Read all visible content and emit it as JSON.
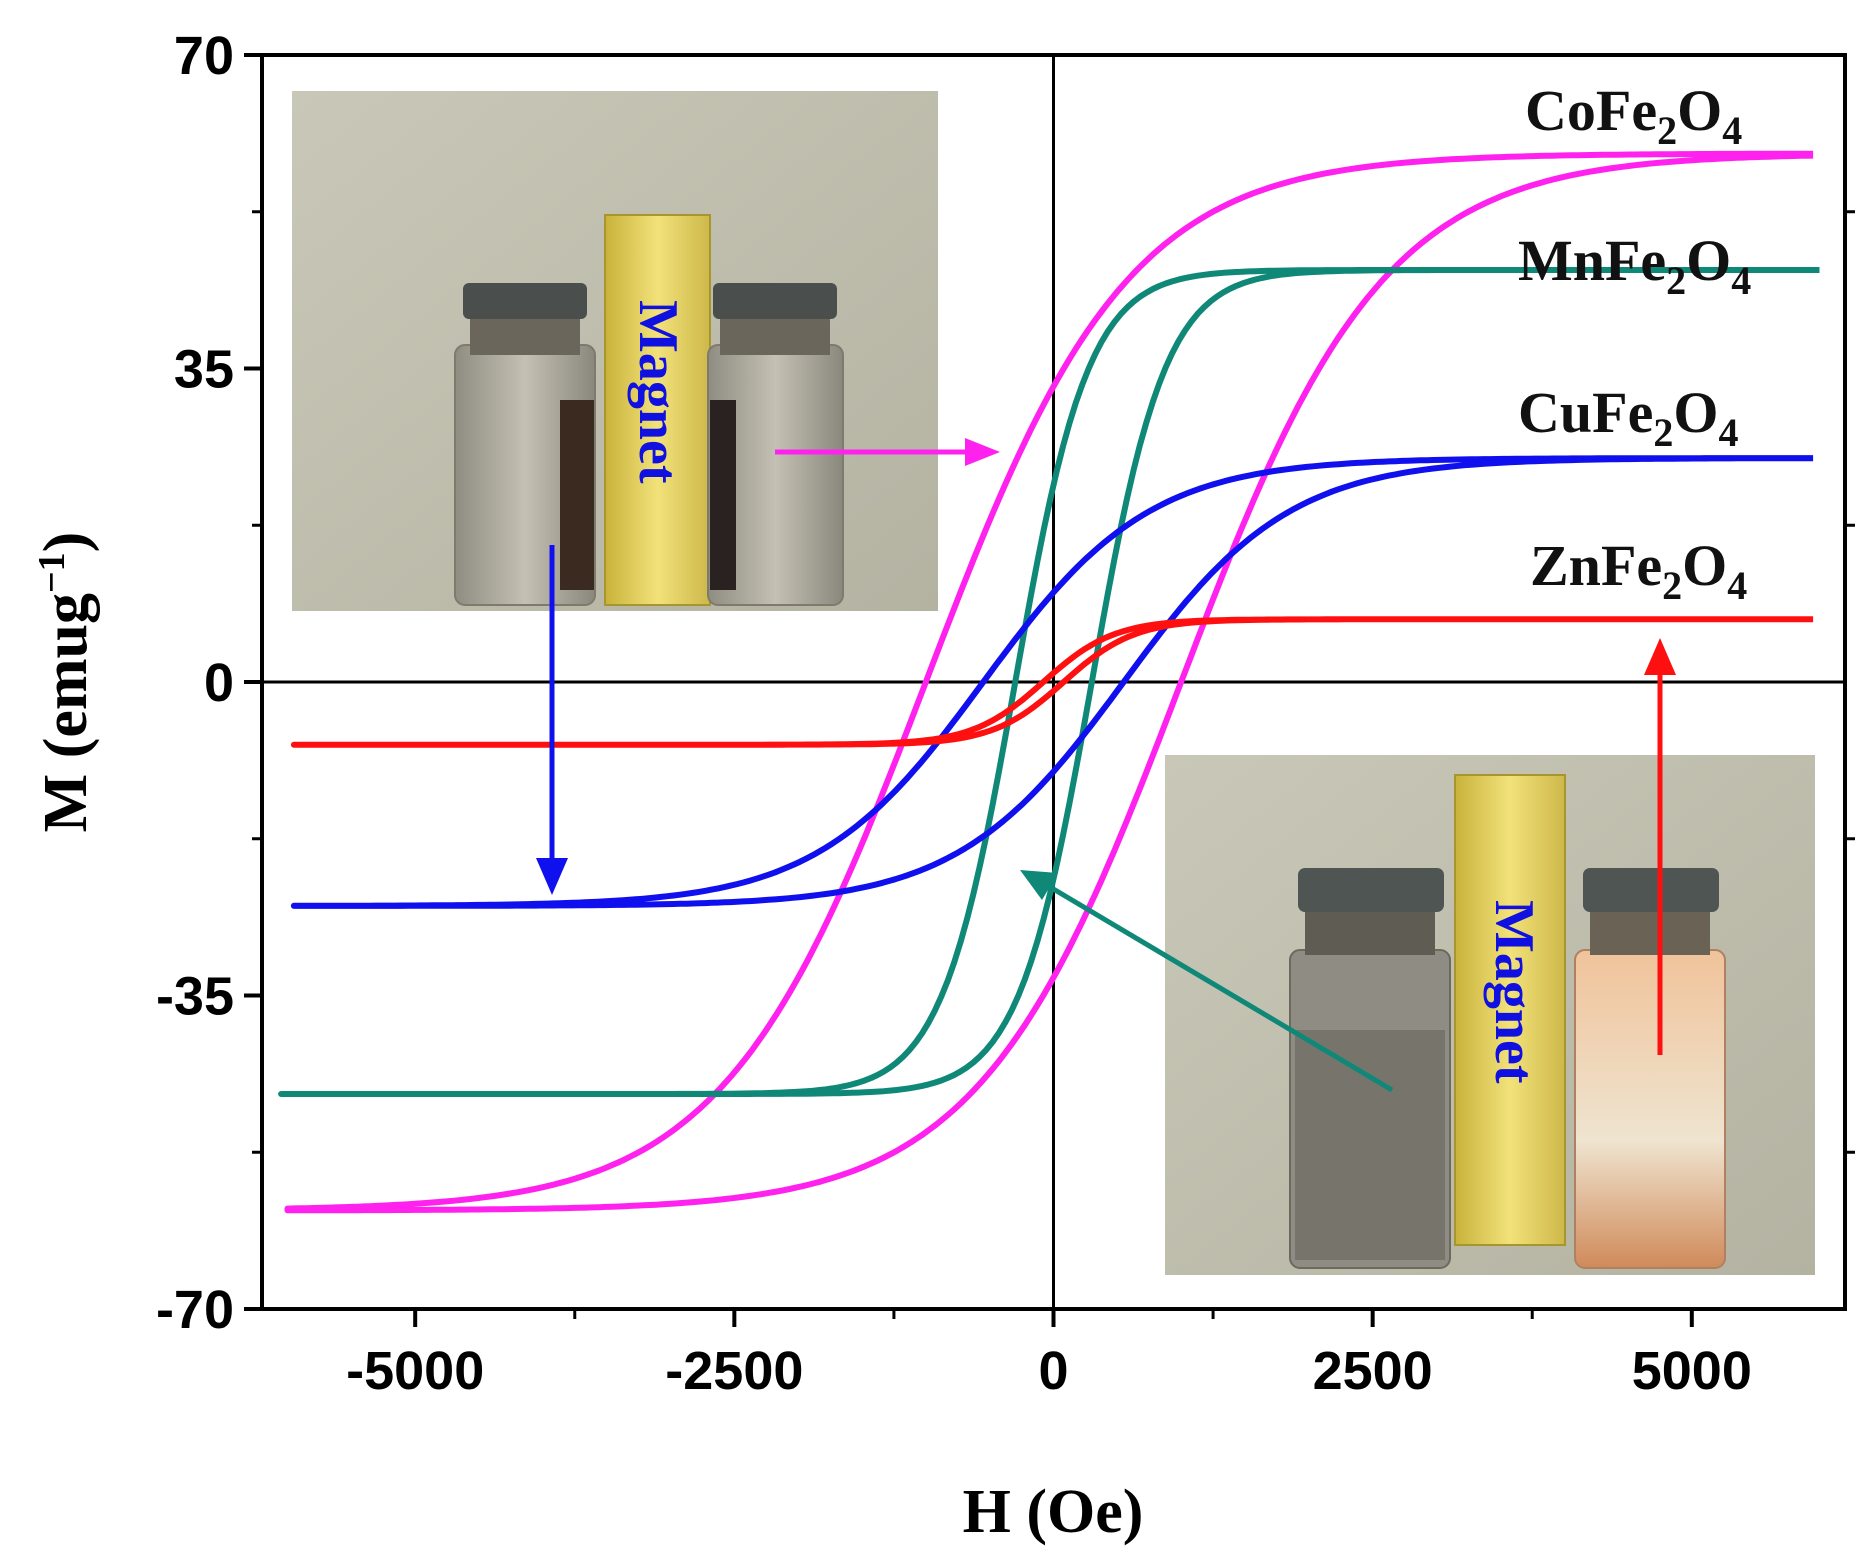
{
  "chart_data": {
    "type": "line",
    "xlabel": "H (Oe)",
    "ylabel_main": "M (emug",
    "ylabel_sup": "−1",
    "ylabel_close": ")",
    "xlim": [
      -6200,
      6200
    ],
    "ylim": [
      -70,
      70
    ],
    "xticks": [
      -5000,
      -2500,
      0,
      2500,
      5000
    ],
    "yticks": [
      70,
      35,
      0,
      -35,
      -70
    ],
    "xtick_labels": [
      "-5000",
      "-2500",
      "0",
      "2500",
      "5000"
    ],
    "ytick_labels": [
      "70",
      "35",
      "0",
      "-35",
      "-70"
    ],
    "grid": false,
    "zero_lines": true,
    "series": [
      {
        "name": "CoFe2O4",
        "label_main": "CoFe",
        "label_sub1": "2",
        "label_mid": "O",
        "label_sub2": "4",
        "color": "#ff22ee",
        "Ms": 59,
        "Hc": 1000,
        "Mr": 33,
        "x_range": [
          -6000,
          5950
        ]
      },
      {
        "name": "MnFe2O4",
        "label_main": "MnFe",
        "label_sub1": "2",
        "label_mid": "O",
        "label_sub2": "4",
        "color": "#108878",
        "Ms": 46,
        "Hc": 300,
        "Mr": 22,
        "x_range": [
          -6050,
          6000
        ]
      },
      {
        "name": "CuFe2O4",
        "label_main": "CuFe",
        "label_sub1": "2",
        "label_mid": "O",
        "label_sub2": "4",
        "color": "#1010ee",
        "Ms": 25,
        "Hc": 550,
        "Mr": 10,
        "x_range": [
          -5950,
          5950
        ]
      },
      {
        "name": "ZnFe2O4",
        "label_main": "ZnFe",
        "label_sub1": "2",
        "label_mid": "O",
        "label_sub2": "4",
        "color": "#ff1010",
        "Ms": 7,
        "Hc": 80,
        "Mr": 1,
        "x_range": [
          -5950,
          5950
        ]
      }
    ]
  },
  "insets": {
    "left_photo": {
      "magnet_label": "Magnet"
    },
    "right_photo": {
      "magnet_label": "Magnet"
    }
  }
}
